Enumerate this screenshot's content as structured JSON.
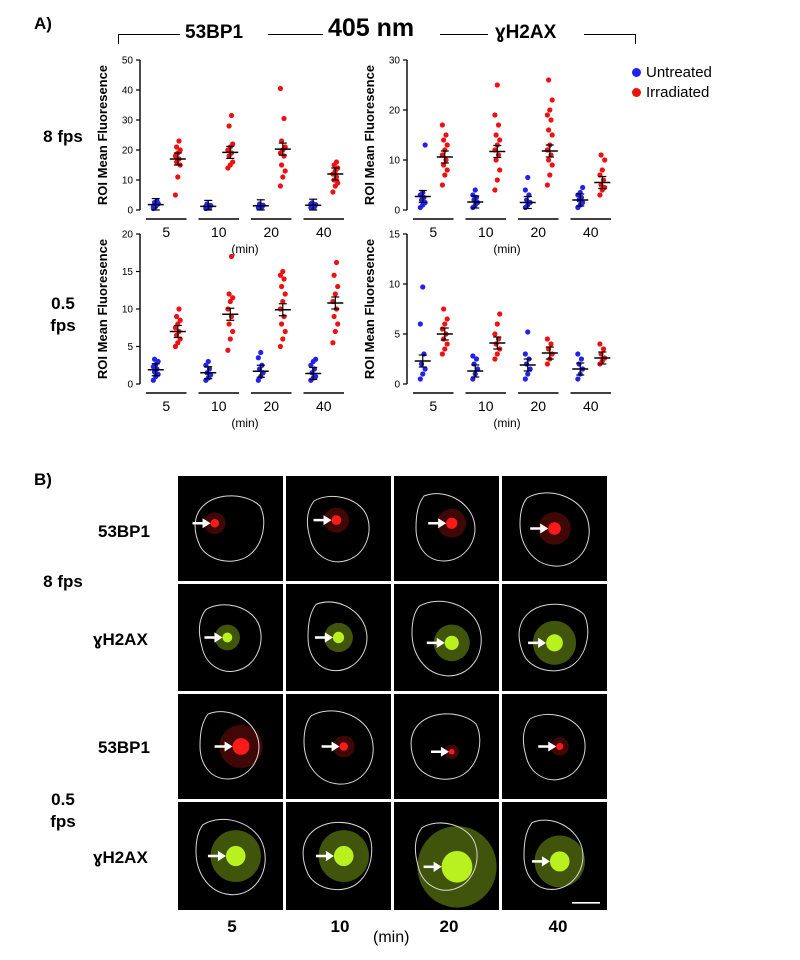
{
  "panel_a_label": "A)",
  "panel_b_label": "B)",
  "header": {
    "left": "53BP1",
    "center": "405 nm",
    "right": "ɣH2AX"
  },
  "row_labels": {
    "fast_line1": "8 fps",
    "slow_line1": "0.5",
    "slow_line2": "fps"
  },
  "legend": [
    {
      "label": "Untreated",
      "color": "#2222ee"
    },
    {
      "label": "Irradiated",
      "color": "#ee1111"
    }
  ],
  "colors": {
    "untreated": "#2222ee",
    "irradiated": "#ee1111",
    "nucleus_outline": "#d8d8d8",
    "red_signal": "#ff1a1a",
    "green_signal": "#b8f020"
  },
  "x_time_labels": [
    "5",
    "10",
    "20",
    "40"
  ],
  "x_unit": "(min)",
  "chart_data": [
    {
      "id": "53bp1-8fps",
      "type": "scatter",
      "ylabel": "ROI Mean Fluoresence",
      "ylim": [
        0,
        50
      ],
      "yticks": [
        0,
        10,
        20,
        30,
        40,
        50
      ],
      "categories": [
        "5",
        "10",
        "20",
        "40"
      ],
      "series": [
        {
          "name": "Untreated",
          "means": [
            1.8,
            1.2,
            1.4,
            1.6
          ],
          "points": [
            [
              1.0,
              1.5,
              2.0,
              2.5,
              3.0,
              0.5,
              1.2,
              2.2
            ],
            [
              0.5,
              1.0,
              1.5,
              2.0,
              0.8,
              1.2
            ],
            [
              0.8,
              1.2,
              1.6,
              2.0,
              1.0
            ],
            [
              0.8,
              1.2,
              1.8,
              2.4,
              1.0,
              2.0
            ]
          ]
        },
        {
          "name": "Irradiated",
          "means": [
            17,
            19.2,
            20.3,
            12
          ],
          "points": [
            [
              5,
              11,
              15,
              16,
              17,
              18,
              19,
              20,
              21,
              23
            ],
            [
              14,
              15,
              16,
              18,
              19,
              20,
              21,
              22,
              28,
              31.5
            ],
            [
              8,
              11,
              13,
              15,
              18,
              19,
              20,
              21,
              23,
              30.5,
              40.5
            ],
            [
              6,
              8,
              9,
              10,
              11,
              12,
              13,
              14,
              15,
              16
            ]
          ]
        }
      ]
    },
    {
      "id": "h2ax-8fps",
      "type": "scatter",
      "ylabel": "ROI Mean Fluoresence",
      "ylim": [
        0,
        30
      ],
      "yticks": [
        0,
        10,
        20,
        30
      ],
      "categories": [
        "5",
        "10",
        "20",
        "40"
      ],
      "series": [
        {
          "name": "Untreated",
          "means": [
            2.7,
            1.6,
            1.5,
            2.0
          ],
          "points": [
            [
              0.5,
              1.0,
              1.5,
              2.0,
              2.5,
              3.0,
              3.5,
              13.0
            ],
            [
              0.5,
              1.0,
              1.5,
              2.0,
              2.5,
              3.0,
              4.0
            ],
            [
              0.5,
              1.0,
              1.5,
              2.0,
              3.0,
              4.0,
              6.5
            ],
            [
              0.5,
              1.0,
              1.5,
              2.0,
              2.5,
              3.0,
              3.5,
              4.5
            ]
          ]
        },
        {
          "name": "Irradiated",
          "means": [
            10.6,
            11.7,
            11.8,
            5.5
          ],
          "points": [
            [
              5,
              7,
              8,
              9,
              10,
              11,
              12,
              13,
              14,
              15,
              17
            ],
            [
              4,
              6,
              8,
              10,
              11,
              12,
              13,
              14,
              15,
              17,
              19,
              25
            ],
            [
              5,
              7,
              9,
              10,
              11,
              12,
              13,
              15,
              16,
              18,
              19,
              20,
              22,
              26
            ],
            [
              3,
              4,
              4.5,
              5,
              6,
              7,
              8,
              10,
              11
            ]
          ]
        }
      ]
    },
    {
      "id": "53bp1-05fps",
      "type": "scatter",
      "ylabel": "ROI Mean Fluoresence",
      "ylim": [
        0,
        20
      ],
      "yticks": [
        0,
        5,
        10,
        15,
        20
      ],
      "categories": [
        "5",
        "10",
        "20",
        "40"
      ],
      "series": [
        {
          "name": "Untreated",
          "means": [
            1.9,
            1.5,
            1.7,
            1.4
          ],
          "points": [
            [
              0.5,
              1.0,
              1.3,
              1.6,
              2.0,
              2.3,
              2.6,
              3.0,
              3.3
            ],
            [
              0.5,
              0.8,
              1.2,
              1.5,
              2.0,
              2.5,
              3.0
            ],
            [
              0.5,
              1.0,
              1.5,
              2.0,
              2.5,
              3.5,
              4.2
            ],
            [
              0.5,
              0.8,
              1.0,
              1.5,
              2.0,
              2.5,
              3.0,
              3.3
            ]
          ]
        },
        {
          "name": "Irradiated",
          "means": [
            7.0,
            9.3,
            9.9,
            10.8
          ],
          "points": [
            [
              5,
              5.5,
              6,
              6.5,
              7,
              7.5,
              8,
              8.5,
              9,
              10
            ],
            [
              4.5,
              6,
              7,
              8,
              9,
              10,
              11,
              11.5,
              12,
              17
            ],
            [
              5,
              6,
              7,
              8,
              9,
              10,
              11,
              12,
              13,
              14,
              14.5,
              15
            ],
            [
              5.5,
              7,
              8,
              9,
              10,
              11,
              12,
              13,
              14.5,
              16.2
            ]
          ]
        }
      ]
    },
    {
      "id": "h2ax-05fps",
      "type": "scatter",
      "ylabel": "ROI Mean Fluoresence",
      "ylim": [
        0,
        15
      ],
      "yticks": [
        0,
        5,
        10,
        15
      ],
      "categories": [
        "5",
        "10",
        "20",
        "40"
      ],
      "series": [
        {
          "name": "Untreated",
          "means": [
            2.3,
            1.3,
            1.9,
            1.5
          ],
          "points": [
            [
              0.5,
              1.0,
              1.5,
              2.0,
              3.0,
              6.0,
              9.7
            ],
            [
              0.5,
              1.0,
              1.5,
              2.0,
              2.5,
              2.8
            ],
            [
              0.5,
              1.0,
              1.5,
              2.0,
              2.5,
              3.0,
              5.2
            ],
            [
              0.5,
              1.0,
              1.5,
              2.0,
              2.5,
              3.0
            ]
          ]
        },
        {
          "name": "Irradiated",
          "means": [
            5.0,
            4.1,
            3.1,
            2.6
          ],
          "points": [
            [
              3,
              3.5,
              4,
              4.5,
              5,
              5.5,
              6,
              6.5,
              7.5
            ],
            [
              2.5,
              3,
              3.5,
              4,
              4.5,
              5,
              6,
              7
            ],
            [
              2,
              2.5,
              3,
              3.5,
              4,
              4.5
            ],
            [
              2,
              2.3,
              2.6,
              3,
              3.5,
              4
            ]
          ]
        }
      ]
    }
  ],
  "micrographs": {
    "rows": [
      {
        "label": "53BP1",
        "stain": "red"
      },
      {
        "label": "ɣH2AX",
        "stain": "green"
      },
      {
        "label": "53BP1",
        "stain": "red"
      },
      {
        "label": "ɣH2AX",
        "stain": "green"
      }
    ],
    "group_labels": [
      {
        "line1": "8 fps",
        "line2": ""
      },
      {
        "line1": "0.5",
        "line2": "fps"
      }
    ],
    "column_labels": [
      "5",
      "10",
      "20",
      "40"
    ],
    "unit": "(min)"
  }
}
